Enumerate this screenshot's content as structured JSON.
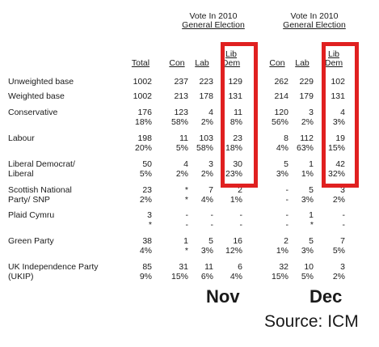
{
  "group_headers": [
    {
      "line1": "Vote In 2010",
      "line2": "General Election"
    },
    {
      "line1": "Vote In 2010",
      "line2": "General Election"
    }
  ],
  "columns": [
    "Total",
    "Con",
    "Lab",
    "Lib\nDem",
    "Con",
    "Lab",
    "Lib\nDem"
  ],
  "rows": [
    {
      "label": "Unweighted base",
      "values": [
        [
          "1002"
        ],
        [
          "237"
        ],
        [
          "223"
        ],
        [
          "129"
        ],
        [
          "262"
        ],
        [
          "229"
        ],
        [
          "102"
        ]
      ]
    },
    {
      "label": "Weighted base",
      "values": [
        [
          "1002"
        ],
        [
          "213"
        ],
        [
          "178"
        ],
        [
          "131"
        ],
        [
          "214"
        ],
        [
          "179"
        ],
        [
          "131"
        ]
      ]
    },
    {
      "label": "Conservative",
      "values": [
        [
          "176",
          "18%"
        ],
        [
          "123",
          "58%"
        ],
        [
          "4",
          "2%"
        ],
        [
          "11",
          "8%"
        ],
        [
          "120",
          "56%"
        ],
        [
          "3",
          "2%"
        ],
        [
          "4",
          "3%"
        ]
      ]
    },
    {
      "label": "Labour",
      "values": [
        [
          "198",
          "20%"
        ],
        [
          "11",
          "5%"
        ],
        [
          "103",
          "58%"
        ],
        [
          "23",
          "18%"
        ],
        [
          "8",
          "4%"
        ],
        [
          "112",
          "63%"
        ],
        [
          "19",
          "15%"
        ]
      ]
    },
    {
      "label": "Liberal Democrat/\nLiberal",
      "values": [
        [
          "50",
          "5%"
        ],
        [
          "4",
          "2%"
        ],
        [
          "3",
          "2%"
        ],
        [
          "30",
          "23%"
        ],
        [
          "5",
          "3%"
        ],
        [
          "1",
          "1%"
        ],
        [
          "42",
          "32%"
        ]
      ]
    },
    {
      "label": "Scottish National\nParty/ SNP",
      "values": [
        [
          "23",
          "2%"
        ],
        [
          "*",
          "*"
        ],
        [
          "7",
          "4%"
        ],
        [
          "2",
          "1%"
        ],
        [
          "-",
          "-"
        ],
        [
          "5",
          "3%"
        ],
        [
          "3",
          "2%"
        ]
      ]
    },
    {
      "label": "Plaid Cymru",
      "values": [
        [
          "3",
          "*"
        ],
        [
          "-",
          "-"
        ],
        [
          "-",
          "-"
        ],
        [
          "-",
          "-"
        ],
        [
          "-",
          "-"
        ],
        [
          "1",
          "*"
        ],
        [
          "-",
          "-"
        ]
      ]
    },
    {
      "label": "Green Party",
      "values": [
        [
          "38",
          "4%"
        ],
        [
          "1",
          "*"
        ],
        [
          "5",
          "3%"
        ],
        [
          "16",
          "12%"
        ],
        [
          "2",
          "1%"
        ],
        [
          "5",
          "3%"
        ],
        [
          "7",
          "5%"
        ]
      ]
    },
    {
      "label": "UK Independence Party\n(UKIP)",
      "values": [
        [
          "85",
          "9%"
        ],
        [
          "31",
          "15%"
        ],
        [
          "11",
          "6%"
        ],
        [
          "6",
          "4%"
        ],
        [
          "32",
          "15%"
        ],
        [
          "10",
          "5%"
        ],
        [
          "3",
          "2%"
        ]
      ]
    }
  ],
  "month_labels": [
    "Nov",
    "Dec"
  ],
  "source": "Source: ICM",
  "highlight_color": "#e02020"
}
